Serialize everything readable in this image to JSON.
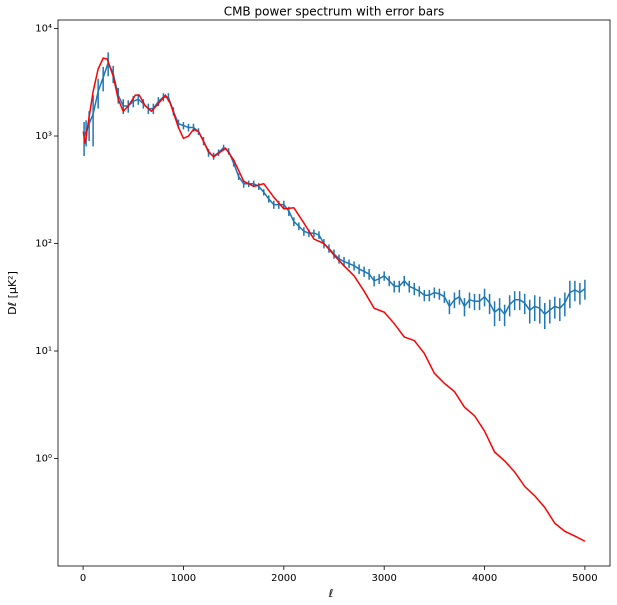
{
  "chart_data": {
    "type": "line",
    "title": "CMB power spectrum with error bars",
    "x_label": "ℓ",
    "y_label": "Dℓ [μK²]",
    "yscale": "log",
    "xlim": [
      -250,
      5250
    ],
    "ylim": [
      0.1,
      12000
    ],
    "xticks": [
      0,
      1000,
      2000,
      3000,
      4000,
      5000
    ],
    "yticks": [
      {
        "value": 1,
        "label": "10⁰"
      },
      {
        "value": 10,
        "label": "10¹"
      },
      {
        "value": 100,
        "label": "10²"
      },
      {
        "value": 1000,
        "label": "10³"
      },
      {
        "value": 10000,
        "label": "10⁴"
      }
    ],
    "series": [
      {
        "color": "#1f77b4",
        "x": [
          10,
          30,
          60,
          100,
          150,
          200,
          250,
          300,
          350,
          400,
          450,
          500,
          550,
          600,
          650,
          700,
          750,
          800,
          850,
          900,
          950,
          1000,
          1050,
          1100,
          1150,
          1200,
          1250,
          1300,
          1350,
          1400,
          1450,
          1500,
          1550,
          1600,
          1650,
          1700,
          1750,
          1800,
          1850,
          1900,
          1950,
          2000,
          2050,
          2100,
          2150,
          2200,
          2250,
          2300,
          2350,
          2400,
          2450,
          2500,
          2550,
          2600,
          2650,
          2700,
          2750,
          2800,
          2850,
          2900,
          2950,
          3000,
          3050,
          3100,
          3150,
          3200,
          3250,
          3300,
          3350,
          3400,
          3450,
          3500,
          3550,
          3600,
          3650,
          3700,
          3750,
          3800,
          3850,
          3900,
          3950,
          4000,
          4050,
          4100,
          4150,
          4200,
          4250,
          4300,
          4350,
          4400,
          4450,
          4500,
          4550,
          4600,
          4650,
          4700,
          4750,
          4800,
          4850,
          4900,
          4950,
          5000
        ],
        "values": [
          1000,
          1100,
          1300,
          1600,
          2600,
          3500,
          4800,
          3800,
          2400,
          1900,
          1900,
          2100,
          2200,
          2000,
          1800,
          1800,
          2100,
          2300,
          2300,
          1700,
          1300,
          1250,
          1200,
          1200,
          1100,
          900,
          700,
          650,
          700,
          780,
          720,
          560,
          420,
          360,
          360,
          360,
          340,
          300,
          260,
          230,
          230,
          230,
          200,
          160,
          145,
          130,
          125,
          125,
          120,
          100,
          90,
          80,
          72,
          68,
          65,
          62,
          58,
          55,
          52,
          45,
          47,
          50,
          45,
          40,
          40,
          45,
          40,
          38,
          36,
          33,
          33,
          35,
          34,
          32,
          26,
          30,
          32,
          26,
          30,
          29,
          29,
          32,
          28,
          23,
          25,
          22,
          27,
          30,
          30,
          28,
          24,
          26,
          25,
          22,
          24,
          26,
          25,
          28,
          35,
          37,
          35,
          38
        ],
        "errors": [
          350,
          300,
          400,
          800,
          800,
          900,
          1200,
          700,
          400,
          300,
          250,
          250,
          250,
          200,
          200,
          200,
          200,
          200,
          200,
          150,
          120,
          100,
          100,
          100,
          80,
          80,
          60,
          50,
          50,
          50,
          50,
          40,
          30,
          30,
          25,
          25,
          25,
          20,
          20,
          20,
          20,
          20,
          20,
          15,
          12,
          12,
          10,
          10,
          10,
          10,
          8,
          8,
          7,
          7,
          6,
          6,
          6,
          6,
          6,
          5,
          5,
          5,
          5,
          5,
          5,
          5,
          5,
          5,
          4,
          4,
          4,
          4,
          4,
          4,
          4,
          5,
          5,
          5,
          5,
          5,
          5,
          6,
          6,
          6,
          6,
          5,
          6,
          6,
          6,
          6,
          6,
          7,
          7,
          6,
          6,
          6,
          6,
          7,
          10,
          8,
          8,
          8
        ]
      },
      {
        "color": "#ff0000",
        "x": [
          2,
          20,
          60,
          100,
          150,
          200,
          240,
          300,
          350,
          400,
          450,
          520,
          560,
          620,
          680,
          750,
          820,
          870,
          950,
          1000,
          1050,
          1100,
          1150,
          1250,
          1300,
          1420,
          1500,
          1600,
          1700,
          1800,
          1900,
          2000,
          2100,
          2200,
          2300,
          2400,
          2500,
          2600,
          2700,
          2800,
          2900,
          3000,
          3100,
          3200,
          3300,
          3400,
          3500,
          3600,
          3700,
          3800,
          3900,
          4000,
          4100,
          4200,
          4300,
          4400,
          4500,
          4600,
          4700,
          4800,
          4900,
          5000
        ],
        "values": [
          1100,
          850,
          1500,
          2600,
          4200,
          5300,
          5200,
          3600,
          2200,
          1700,
          1900,
          2400,
          2400,
          1900,
          1700,
          2000,
          2400,
          2000,
          1200,
          950,
          1000,
          1150,
          1100,
          720,
          640,
          770,
          600,
          380,
          340,
          360,
          270,
          210,
          215,
          155,
          110,
          100,
          78,
          62,
          50,
          36,
          25,
          23,
          18,
          13.5,
          12.5,
          9.5,
          6.2,
          5.0,
          4.2,
          3.0,
          2.5,
          1.8,
          1.15,
          0.95,
          0.75,
          0.55,
          0.45,
          0.35,
          0.25,
          0.21,
          0.19,
          0.17
        ]
      }
    ]
  }
}
